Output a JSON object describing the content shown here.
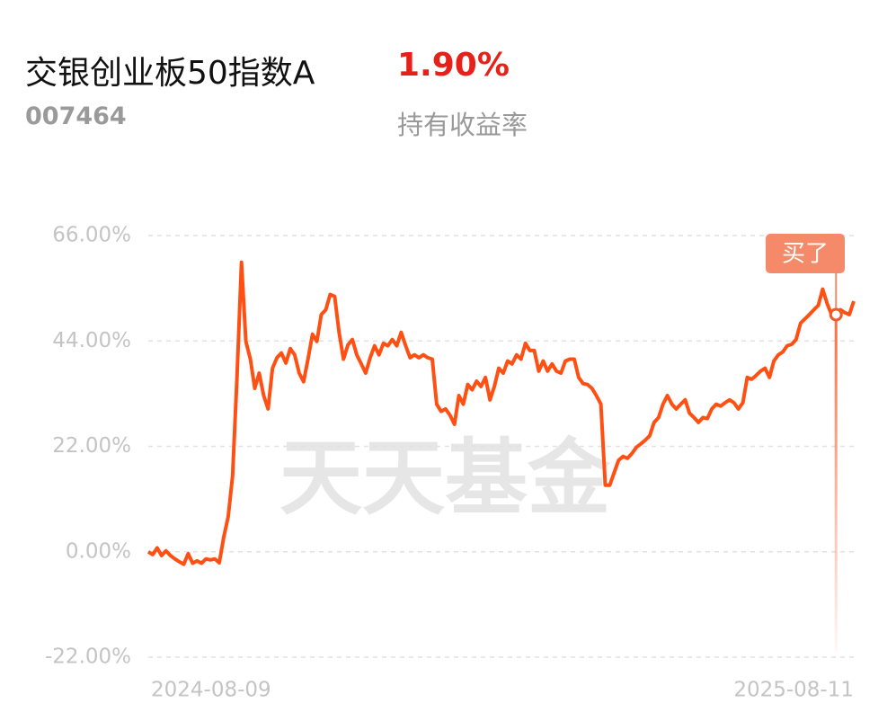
{
  "header": {
    "title": "交银创业板50指数A",
    "code": "007464",
    "return_value": "1.90%",
    "return_label": "持有收益率"
  },
  "chart_data": {
    "type": "line",
    "color": "#ff5014",
    "watermark": "天天基金",
    "annotation": "买了",
    "ylim": [
      -22,
      66
    ],
    "yticks": [
      {
        "value": -22,
        "label": "-22.00%"
      },
      {
        "value": 0,
        "label": "0.00%"
      },
      {
        "value": 22,
        "label": "22.00%"
      },
      {
        "value": 44,
        "label": "44.00%"
      },
      {
        "value": 66,
        "label": "66.00%"
      }
    ],
    "grid": true,
    "categories": [
      "2024-08-09",
      null,
      null,
      null,
      null,
      null,
      null,
      null,
      null,
      null,
      null,
      null,
      null,
      null,
      null,
      null,
      null,
      null,
      null,
      null,
      null,
      null,
      null,
      null,
      null,
      null,
      null,
      null,
      null,
      null,
      null,
      null,
      null,
      null,
      null,
      null,
      null,
      null,
      null,
      null,
      null,
      null,
      null,
      null,
      null,
      null,
      null,
      null,
      null,
      null,
      null,
      null,
      null,
      null,
      null,
      null,
      null,
      null,
      null,
      null,
      null,
      null,
      null,
      null,
      null,
      null,
      null,
      null,
      null,
      null,
      null,
      null,
      null,
      null,
      null,
      null,
      null,
      null,
      null,
      null,
      null,
      null,
      null,
      null,
      null,
      null,
      null,
      null,
      null,
      null,
      null,
      null,
      null,
      null,
      null,
      null,
      null,
      null,
      null,
      null,
      null,
      null,
      null,
      null,
      null,
      null,
      null,
      null,
      null,
      null,
      null,
      null,
      null,
      null,
      null,
      null,
      null,
      null,
      null,
      null,
      null,
      null,
      null,
      null,
      null,
      null,
      null,
      null,
      null,
      null,
      null,
      null,
      null,
      null,
      null,
      null,
      null,
      null,
      null,
      null,
      null,
      null,
      null,
      null,
      null,
      null,
      null,
      null,
      null,
      null,
      null,
      null,
      null,
      null,
      null,
      null,
      null,
      null,
      null,
      "2025-08-11"
    ],
    "values": [
      0.0,
      -0.6,
      0.8,
      -0.8,
      0.2,
      -0.8,
      -1.5,
      -2.1,
      -2.6,
      -0.4,
      -2.4,
      -1.9,
      -2.4,
      -1.5,
      -1.7,
      -1.5,
      -2.3,
      3.0,
      7.3,
      15.8,
      36.4,
      60.4,
      43.9,
      40.2,
      34.1,
      37.3,
      32.6,
      29.8,
      38.3,
      40.5,
      41.5,
      39.4,
      42.4,
      41.1,
      37.3,
      35.5,
      40.2,
      45.4,
      43.9,
      49.5,
      50.5,
      53.7,
      53.3,
      45.8,
      40.2,
      43.2,
      44.3,
      41.1,
      39.2,
      37.3,
      40.5,
      43.0,
      41.1,
      43.5,
      43.0,
      44.3,
      43.0,
      45.8,
      43.0,
      40.5,
      41.1,
      40.5,
      41.1,
      40.5,
      40.2,
      30.8,
      29.3,
      29.8,
      28.5,
      26.6,
      32.6,
      30.8,
      34.9,
      33.8,
      35.6,
      34.5,
      36.4,
      31.7,
      34.5,
      38.3,
      37.3,
      39.8,
      39.2,
      41.1,
      40.2,
      43.5,
      42.0,
      42.0,
      37.7,
      39.8,
      37.7,
      39.2,
      37.7,
      37.3,
      39.8,
      40.2,
      40.2,
      36.4,
      35.1,
      34.9,
      34.1,
      32.6,
      30.8,
      13.9,
      13.9,
      16.5,
      19.1,
      19.9,
      19.5,
      20.5,
      21.8,
      22.5,
      23.3,
      24.2,
      27.0,
      28.0,
      30.8,
      32.6,
      30.8,
      29.8,
      30.8,
      31.7,
      28.9,
      28.0,
      27.0,
      28.0,
      27.8,
      29.8,
      30.8,
      30.4,
      31.1,
      31.7,
      31.1,
      29.8,
      31.1,
      36.4,
      36.0,
      36.8,
      37.7,
      38.3,
      36.4,
      39.8,
      41.1,
      41.7,
      43.0,
      43.3,
      44.3,
      47.7,
      48.6,
      49.5,
      50.5,
      51.4,
      54.8,
      51.8,
      49.5,
      49.5,
      50.5,
      49.9,
      49.5,
      52.3
    ]
  }
}
